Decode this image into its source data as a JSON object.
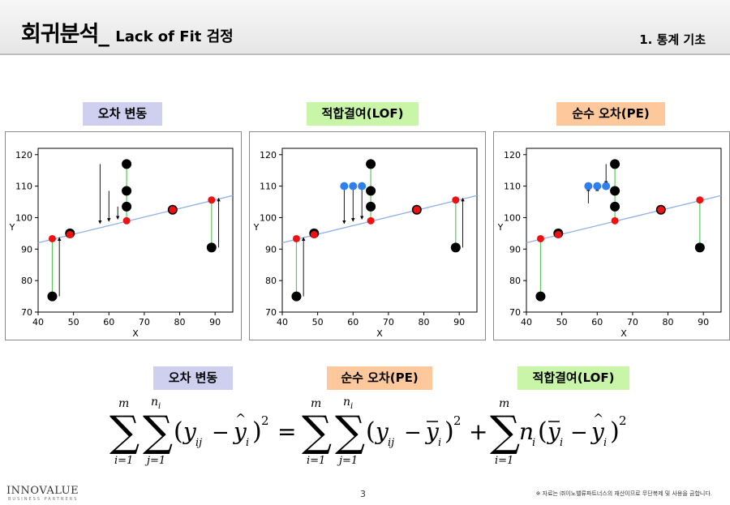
{
  "header": {
    "title": "회귀분석_",
    "subtitle": "Lack of Fit 검정",
    "section": "1. 통계 기초"
  },
  "labels": {
    "total": "오차 변동",
    "lof": "적합결여(LOF)",
    "pe": "순수 오차(PE)"
  },
  "formula_labels": {
    "total": "오차 변동",
    "pe": "순수 오차(PE)",
    "lof": "적합결여(LOF)"
  },
  "chart_data": [
    {
      "type": "scatter",
      "title": "오차 변동",
      "xlabel": "X",
      "ylabel": "Y",
      "xlim": [
        40,
        95
      ],
      "ylim": [
        70,
        122
      ],
      "xticks": [
        40,
        50,
        60,
        70,
        80,
        90
      ],
      "yticks": [
        70,
        80,
        90,
        100,
        110,
        120
      ],
      "fit_line": {
        "x": [
          40,
          95
        ],
        "y": [
          92,
          107
        ]
      },
      "observed": {
        "x": [
          44,
          49,
          65,
          65,
          65,
          78,
          89
        ],
        "y": [
          75,
          95,
          117,
          108.5,
          103.5,
          102.5,
          90.5
        ]
      },
      "fitted": {
        "x": [
          44,
          49,
          65,
          78,
          89
        ],
        "y": [
          93.3,
          94.6,
          99,
          102.5,
          105.6
        ]
      },
      "arrows": [
        {
          "x": 46,
          "from": 75,
          "to": 93.7
        },
        {
          "x": 57.5,
          "from": 117,
          "to": 98.1
        },
        {
          "x": 60,
          "from": 108.5,
          "to": 98.8
        },
        {
          "x": 62.5,
          "from": 103.5,
          "to": 99.5
        },
        {
          "x": 91,
          "from": 90.5,
          "to": 106.2
        }
      ]
    },
    {
      "type": "scatter",
      "title": "적합결여(LOF)",
      "xlabel": "X",
      "ylabel": "Y",
      "xlim": [
        40,
        95
      ],
      "ylim": [
        70,
        122
      ],
      "xticks": [
        40,
        50,
        60,
        70,
        80,
        90
      ],
      "yticks": [
        70,
        80,
        90,
        100,
        110,
        120
      ],
      "fit_line": {
        "x": [
          40,
          95
        ],
        "y": [
          92,
          107
        ]
      },
      "observed": {
        "x": [
          44,
          49,
          65,
          65,
          65,
          78,
          89
        ],
        "y": [
          75,
          95,
          117,
          108.5,
          103.5,
          102.5,
          90.5
        ]
      },
      "fitted": {
        "x": [
          44,
          49,
          65,
          78,
          89
        ],
        "y": [
          93.3,
          94.6,
          99,
          102.5,
          105.6
        ]
      },
      "group_means": {
        "x": [
          57.5,
          60,
          62.5
        ],
        "y": [
          110,
          110,
          110
        ]
      },
      "arrows": [
        {
          "x": 46,
          "from": 75,
          "to": 93.7
        },
        {
          "x": 57.5,
          "from": 110,
          "to": 98.1
        },
        {
          "x": 60,
          "from": 110,
          "to": 98.8
        },
        {
          "x": 62.5,
          "from": 110,
          "to": 99.5
        },
        {
          "x": 91,
          "from": 90.5,
          "to": 106.2
        }
      ]
    },
    {
      "type": "scatter",
      "title": "순수 오차(PE)",
      "xlabel": "X",
      "ylabel": "Y",
      "xlim": [
        40,
        95
      ],
      "ylim": [
        70,
        122
      ],
      "xticks": [
        40,
        50,
        60,
        70,
        80,
        90
      ],
      "yticks": [
        70,
        80,
        90,
        100,
        110,
        120
      ],
      "fit_line": {
        "x": [
          40,
          95
        ],
        "y": [
          92,
          107
        ]
      },
      "observed": {
        "x": [
          44,
          49,
          65,
          65,
          65,
          78,
          89
        ],
        "y": [
          75,
          95,
          117,
          108.5,
          103.5,
          102.5,
          90.5
        ]
      },
      "fitted": {
        "x": [
          44,
          49,
          65,
          78,
          89
        ],
        "y": [
          93.3,
          94.6,
          99,
          102.5,
          105.6
        ]
      },
      "group_means": {
        "x": [
          57.5,
          60,
          62.5
        ],
        "y": [
          110,
          110,
          110
        ]
      },
      "arrows": [
        {
          "x": 57.5,
          "from": 104.5,
          "to": 109.5
        },
        {
          "x": 60,
          "from": 108.5,
          "to": 109.5
        },
        {
          "x": 62.5,
          "from": 117,
          "to": 110.5
        }
      ]
    }
  ],
  "formula": {
    "sum_upper": "m",
    "sum_lower_i": "i=1",
    "sum_upper_j": "n",
    "sum_upper_j_sub": "i",
    "sum_lower_j": "j=1",
    "paren_open": "(",
    "paren_close": ")",
    "y": "y",
    "sub_ij": "ij",
    "sub_i": "i",
    "minus": "−",
    "plus": "+",
    "equals": "=",
    "squared": "2",
    "n": "n"
  },
  "footer": {
    "logo": "INNOVALUE",
    "logo_sub": "BUSINESS PARTNERS",
    "page": "3",
    "copyright": "※ 자료는 ㈜이노밸류파트너스의 재산이므로 무단복제 및 사용을 금합니다."
  }
}
